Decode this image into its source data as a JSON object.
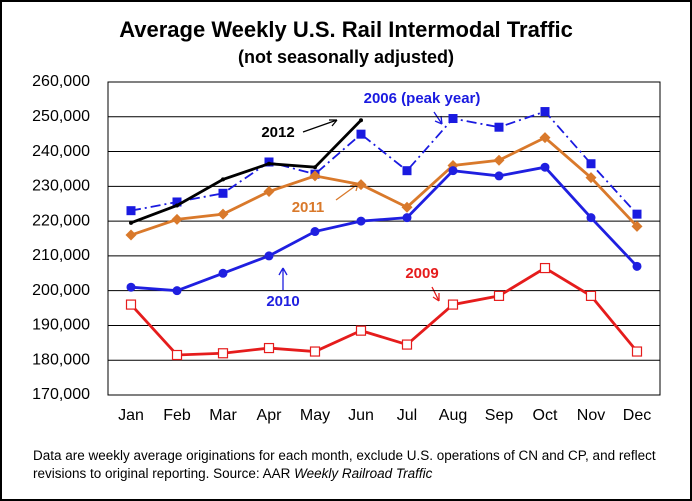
{
  "chart_data": {
    "type": "line",
    "title": "Average Weekly U.S. Rail Intermodal Traffic",
    "subtitle": "(not seasonally adjusted)",
    "categories": [
      "Jan",
      "Feb",
      "Mar",
      "Apr",
      "May",
      "Jun",
      "Jul",
      "Aug",
      "Sep",
      "Oct",
      "Nov",
      "Dec"
    ],
    "series": [
      {
        "name": "2006 (peak year)",
        "color": "#1a1ae0",
        "marker": "square",
        "dash": "dashdot",
        "values": [
          223000,
          225500,
          228000,
          237000,
          233500,
          245000,
          234500,
          249500,
          247000,
          251500,
          236500,
          222000
        ]
      },
      {
        "name": "2012",
        "color": "#000000",
        "marker": "none",
        "dash": "solid",
        "values": [
          219500,
          224500,
          232000,
          236500,
          235500,
          249000,
          null,
          null,
          null,
          null,
          null,
          null
        ]
      },
      {
        "name": "2011",
        "color": "#d9792b",
        "marker": "diamond",
        "dash": "solid",
        "values": [
          216000,
          220500,
          222000,
          228500,
          233000,
          230500,
          224000,
          236000,
          237500,
          244000,
          232500,
          218500
        ]
      },
      {
        "name": "2010",
        "color": "#1f1fe0",
        "marker": "circle",
        "dash": "solid",
        "values": [
          201000,
          200000,
          205000,
          210000,
          217000,
          220000,
          221000,
          234500,
          233000,
          235500,
          221000,
          207000
        ]
      },
      {
        "name": "2009",
        "color": "#e51c1c",
        "marker": "open-square",
        "dash": "solid",
        "values": [
          196000,
          181500,
          182000,
          183500,
          182500,
          188500,
          184500,
          196000,
          198500,
          206500,
          198500,
          182500
        ]
      }
    ],
    "ylim": [
      170000,
      260000
    ],
    "yticks": [
      {
        "value": 170000,
        "label": "170,000"
      },
      {
        "value": 180000,
        "label": "180,000"
      },
      {
        "value": 190000,
        "label": "190,000"
      },
      {
        "value": 200000,
        "label": "200,000"
      },
      {
        "value": 210000,
        "label": "210,000"
      },
      {
        "value": 220000,
        "label": "220,000"
      },
      {
        "value": 230000,
        "label": "230,000"
      },
      {
        "value": 240000,
        "label": "240,000"
      },
      {
        "value": 250000,
        "label": "250,000"
      },
      {
        "value": 260000,
        "label": "260,000"
      }
    ],
    "grid": true,
    "footnote": "Data are weekly average originations for each month, exclude U.S. operations of CN and CP, and reflect revisions to original reporting.  Source: AAR ",
    "footnote_source_title": "Weekly Railroad Traffic"
  }
}
